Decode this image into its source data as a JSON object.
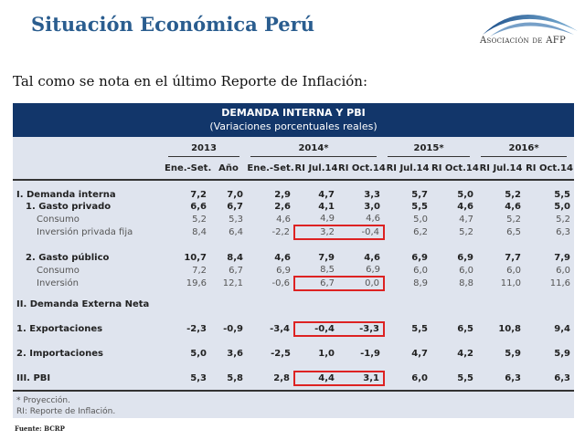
{
  "slide_title": "Situación Económica Perú",
  "logo": {
    "text": "Asociación de AFP"
  },
  "intro": "Tal como se nota en el último Reporte de Inflación:",
  "table": {
    "title": "DEMANDA INTERNA Y PBI",
    "subtitle": "(Variaciones porcentuales reales)",
    "years": [
      "2013",
      "2014*",
      "2015*",
      "2016*"
    ],
    "columns": [
      "Ene.-Set.",
      "Año",
      "Ene.-Set.",
      "RI Jul.14",
      "RI Oct.14",
      "RI Jul.14",
      "RI Oct.14",
      "RI Jul.14",
      "RI Oct.14"
    ],
    "rows": [
      {
        "label": "I.   Demanda interna",
        "values": [
          "7,2",
          "7,0",
          "2,9",
          "4,7",
          "3,3",
          "5,7",
          "5,0",
          "5,2",
          "5,5"
        ]
      },
      {
        "label": "1. Gasto privado",
        "values": [
          "6,6",
          "6,7",
          "2,6",
          "4,1",
          "3,0",
          "5,5",
          "4,6",
          "4,6",
          "5,0"
        ]
      },
      {
        "label": "Consumo",
        "values": [
          "5,2",
          "5,3",
          "4,6",
          "4,9",
          "4,6",
          "5,0",
          "4,7",
          "5,2",
          "5,2"
        ]
      },
      {
        "label": "Inversión privada fija",
        "values": [
          "8,4",
          "6,4",
          "-2,2",
          "3,2",
          "-0,4",
          "6,2",
          "5,2",
          "6,5",
          "6,3"
        ]
      },
      {
        "label": "2. Gasto público",
        "values": [
          "10,7",
          "8,4",
          "4,6",
          "7,9",
          "4,6",
          "6,9",
          "6,9",
          "7,7",
          "7,9"
        ]
      },
      {
        "label": "Consumo",
        "values": [
          "7,2",
          "6,7",
          "6,9",
          "8,5",
          "6,9",
          "6,0",
          "6,0",
          "6,0",
          "6,0"
        ]
      },
      {
        "label": "Inversión",
        "values": [
          "19,6",
          "12,1",
          "-0,6",
          "6,7",
          "0,0",
          "8,9",
          "8,8",
          "11,0",
          "11,6"
        ]
      },
      {
        "label": "II. Demanda Externa Neta",
        "values": []
      },
      {
        "label": "1. Exportaciones",
        "values": [
          "-2,3",
          "-0,9",
          "-3,4",
          "-0,4",
          "-3,3",
          "5,5",
          "6,5",
          "10,8",
          "9,4"
        ]
      },
      {
        "label": "2. Importaciones",
        "values": [
          "5,0",
          "3,6",
          "-2,5",
          "1,0",
          "-1,9",
          "4,7",
          "4,2",
          "5,9",
          "5,9"
        ]
      },
      {
        "label": "III. PBI",
        "values": [
          "5,3",
          "5,8",
          "2,8",
          "4,4",
          "3,1",
          "6,0",
          "5,5",
          "6,3",
          "6,3"
        ]
      }
    ],
    "highlighted_color": "#d22222",
    "footnotes": [
      "* Proyección.",
      "RI: Reporte de Inflación."
    ]
  },
  "source": "Fuente: BCRP"
}
